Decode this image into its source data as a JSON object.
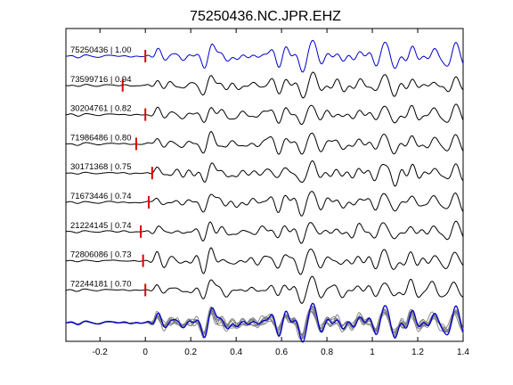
{
  "chart_data": {
    "type": "line",
    "title": "75250436.NC.JPR.EHZ",
    "xlabel": "",
    "ylabel": "",
    "xlim": [
      -0.35,
      1.4
    ],
    "grid": false,
    "x_ticks": [
      -0.2,
      0,
      0.2,
      0.4,
      0.6,
      0.8,
      1,
      1.2,
      1.4
    ],
    "x_tick_labels": [
      "-0.2",
      "0",
      "0.2",
      "0.4",
      "0.6",
      "0.8",
      "1",
      "1.2",
      "1.4"
    ],
    "colors": {
      "reference_trace": "#0000cc",
      "trace": "#000000",
      "stack_trace": "#808080",
      "pick_marker": "#dd0000"
    },
    "series": [
      {
        "label": "75250436 | 1.00",
        "pick_time": 0.0,
        "reference": true
      },
      {
        "label": "73599716 | 0.94",
        "pick_time": -0.1
      },
      {
        "label": "30204761 | 0.82",
        "pick_time": 0.0
      },
      {
        "label": "71986486 | 0.80",
        "pick_time": -0.04
      },
      {
        "label": "30171368 | 0.75",
        "pick_time": 0.03
      },
      {
        "label": "71673446 | 0.74",
        "pick_time": 0.015
      },
      {
        "label": "21224145 | 0.74",
        "pick_time": -0.02
      },
      {
        "label": "72806086 | 0.73",
        "pick_time": -0.01
      },
      {
        "label": "72244181 | 0.70",
        "pick_time": 0.0
      }
    ]
  }
}
